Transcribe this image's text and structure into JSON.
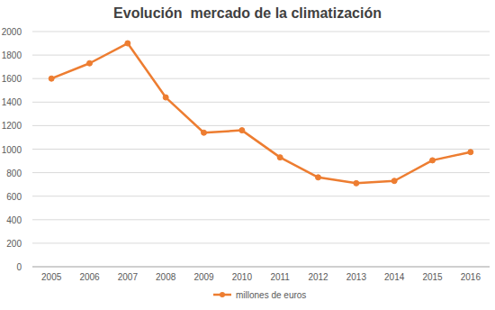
{
  "chart_data": {
    "type": "line",
    "title": "Evolución  mercado de la climatización",
    "categories": [
      "2005",
      "2006",
      "2007",
      "2008",
      "2009",
      "2010",
      "2011",
      "2012",
      "2013",
      "2014",
      "2015",
      "2016"
    ],
    "series": [
      {
        "name": "millones de euros",
        "color": "#ed7d31",
        "marker": "circle",
        "values": [
          1600,
          1730,
          1900,
          1440,
          1140,
          1160,
          930,
          760,
          710,
          730,
          905,
          975
        ]
      }
    ],
    "ylim": [
      0,
      2000
    ],
    "yticks": [
      0,
      200,
      400,
      600,
      800,
      1000,
      1200,
      1400,
      1600,
      1800,
      2000
    ],
    "grid": true,
    "legend": "bottom"
  }
}
